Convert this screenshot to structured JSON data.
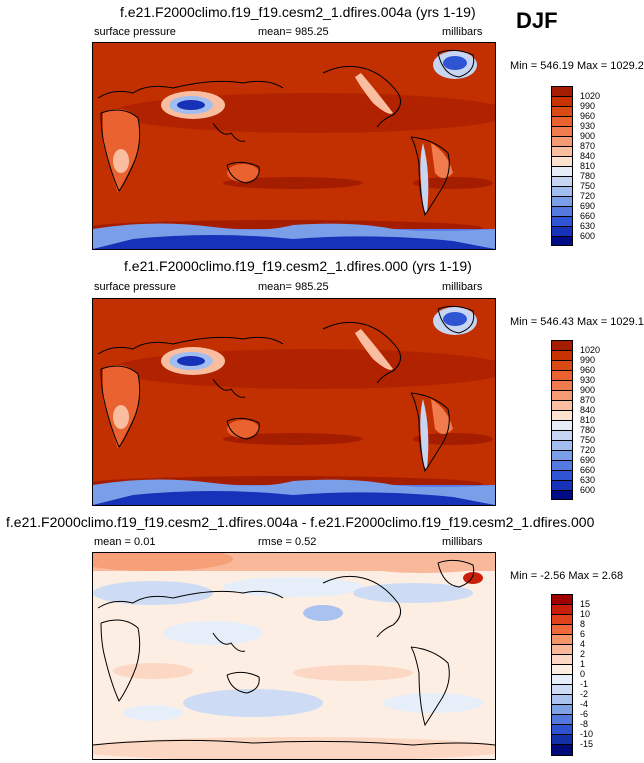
{
  "season": "DJF",
  "panels": [
    {
      "title": "f.e21.F2000climo.f19_f19.cesm2_1.dfires.004a (yrs 1-19)",
      "left_label": "surface pressure",
      "center_label": "mean= 985.25",
      "right_label": "millibars",
      "minmax": "Min = 546.19 Max = 1029.22",
      "colorbar": {
        "labels": [
          "1020",
          "990",
          "960",
          "930",
          "900",
          "870",
          "840",
          "810",
          "780",
          "750",
          "720",
          "690",
          "660",
          "630",
          "600"
        ],
        "colors": [
          "#a51d00",
          "#c83200",
          "#d94a15",
          "#e9622f",
          "#f07c4e",
          "#f59a72",
          "#f9bea0",
          "#fde2cf",
          "#e7ecf7",
          "#c6d6f2",
          "#a2bdef",
          "#7b9ee9",
          "#5479e0",
          "#2f55d4",
          "#1632b8",
          "#000c87"
        ]
      }
    },
    {
      "title": "f.e21.F2000climo.f19_f19.cesm2_1.dfires.000 (yrs 1-19)",
      "left_label": "surface pressure",
      "center_label": "mean= 985.25",
      "right_label": "millibars",
      "minmax": "Min = 546.43 Max = 1029.10",
      "colorbar": {
        "labels": [
          "1020",
          "990",
          "960",
          "930",
          "900",
          "870",
          "840",
          "810",
          "780",
          "750",
          "720",
          "690",
          "660",
          "630",
          "600"
        ],
        "colors": [
          "#a51d00",
          "#c83200",
          "#d94a15",
          "#e9622f",
          "#f07c4e",
          "#f59a72",
          "#f9bea0",
          "#fde2cf",
          "#e7ecf7",
          "#c6d6f2",
          "#a2bdef",
          "#7b9ee9",
          "#5479e0",
          "#2f55d4",
          "#1632b8",
          "#000c87"
        ]
      }
    },
    {
      "title": "f.e21.F2000climo.f19_f19.cesm2_1.dfires.004a - f.e21.F2000climo.f19_f19.cesm2_1.dfires.000",
      "left_label": "mean =   0.01",
      "center_label": "rmse =   0.52",
      "right_label": "millibars",
      "minmax": "Min =  -2.56 Max =   2.68",
      "colorbar": {
        "labels": [
          "15",
          "10",
          "8",
          "6",
          "4",
          "2",
          "1",
          "0",
          "-1",
          "-2",
          "-4",
          "-6",
          "-8",
          "-10",
          "-15"
        ],
        "colors": [
          "#9e0000",
          "#c81e0a",
          "#e0401a",
          "#ee6a3a",
          "#f5956a",
          "#f9b89a",
          "#fcd8c4",
          "#fdeee4",
          "#e6eef9",
          "#cddcf4",
          "#a9c2ef",
          "#7fa2e7",
          "#5278de",
          "#2e52cd",
          "#1430a8",
          "#000a7a"
        ]
      }
    }
  ]
}
